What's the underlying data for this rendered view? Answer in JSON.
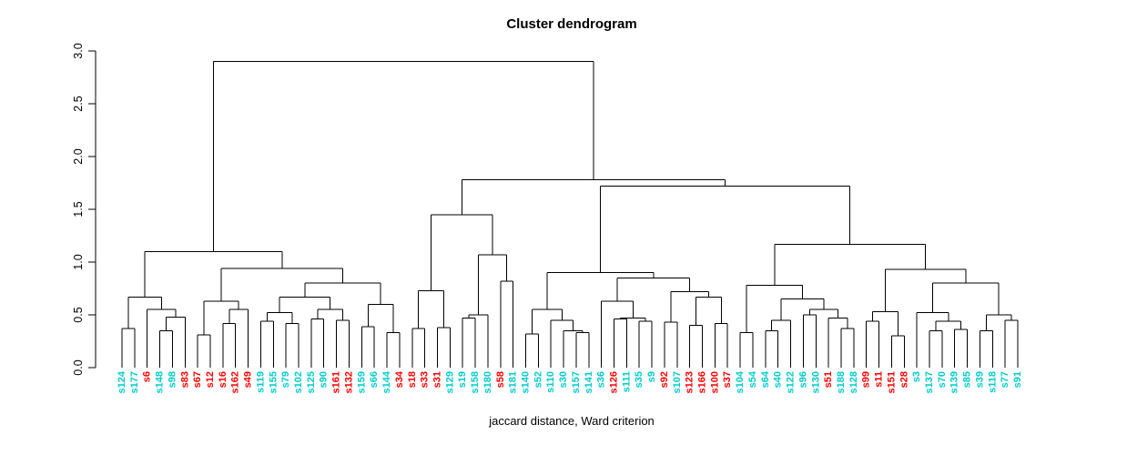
{
  "chart_data": {
    "type": "dendrogram",
    "title": "Cluster dendrogram",
    "xlabel": "jaccard distance, Ward criterion",
    "ylim": [
      0,
      3
    ],
    "yticks": [
      0,
      0.5,
      1,
      1.5,
      2,
      2.5,
      3
    ],
    "ytick_labels": [
      "0.0",
      "0.5",
      "1.0",
      "1.5",
      "2.0",
      "2.5",
      "3.0"
    ],
    "grid": false,
    "line_color": "#000000",
    "label_colors": {
      "cyan": "#00CDCD",
      "red": "#FF0000"
    },
    "leaves": [
      {
        "label": "s124",
        "color": "cyan"
      },
      {
        "label": "s177",
        "color": "cyan"
      },
      {
        "label": "s6",
        "color": "red"
      },
      {
        "label": "s148",
        "color": "cyan"
      },
      {
        "label": "s98",
        "color": "cyan"
      },
      {
        "label": "s83",
        "color": "red"
      },
      {
        "label": "s67",
        "color": "red"
      },
      {
        "label": "s12",
        "color": "red"
      },
      {
        "label": "s16",
        "color": "red"
      },
      {
        "label": "s162",
        "color": "red"
      },
      {
        "label": "s49",
        "color": "red"
      },
      {
        "label": "s119",
        "color": "cyan"
      },
      {
        "label": "s155",
        "color": "cyan"
      },
      {
        "label": "s79",
        "color": "cyan"
      },
      {
        "label": "s102",
        "color": "cyan"
      },
      {
        "label": "s125",
        "color": "cyan"
      },
      {
        "label": "s90",
        "color": "cyan"
      },
      {
        "label": "s161",
        "color": "red"
      },
      {
        "label": "s132",
        "color": "red"
      },
      {
        "label": "s159",
        "color": "cyan"
      },
      {
        "label": "s66",
        "color": "cyan"
      },
      {
        "label": "s144",
        "color": "cyan"
      },
      {
        "label": "s34",
        "color": "red"
      },
      {
        "label": "s18",
        "color": "red"
      },
      {
        "label": "s33",
        "color": "red"
      },
      {
        "label": "s31",
        "color": "red"
      },
      {
        "label": "s129",
        "color": "cyan"
      },
      {
        "label": "s19",
        "color": "cyan"
      },
      {
        "label": "s158",
        "color": "cyan"
      },
      {
        "label": "s180",
        "color": "cyan"
      },
      {
        "label": "s58",
        "color": "red"
      },
      {
        "label": "s181",
        "color": "cyan"
      },
      {
        "label": "s140",
        "color": "cyan"
      },
      {
        "label": "s52",
        "color": "cyan"
      },
      {
        "label": "s110",
        "color": "cyan"
      },
      {
        "label": "s30",
        "color": "cyan"
      },
      {
        "label": "s157",
        "color": "cyan"
      },
      {
        "label": "s141",
        "color": "cyan"
      },
      {
        "label": "s36",
        "color": "cyan"
      },
      {
        "label": "s126",
        "color": "red"
      },
      {
        "label": "s111",
        "color": "cyan"
      },
      {
        "label": "s35",
        "color": "cyan"
      },
      {
        "label": "s9",
        "color": "cyan"
      },
      {
        "label": "s92",
        "color": "red"
      },
      {
        "label": "s107",
        "color": "cyan"
      },
      {
        "label": "s123",
        "color": "red"
      },
      {
        "label": "s166",
        "color": "red"
      },
      {
        "label": "s100",
        "color": "red"
      },
      {
        "label": "s37",
        "color": "red"
      },
      {
        "label": "s104",
        "color": "cyan"
      },
      {
        "label": "s54",
        "color": "cyan"
      },
      {
        "label": "s64",
        "color": "cyan"
      },
      {
        "label": "s40",
        "color": "cyan"
      },
      {
        "label": "s122",
        "color": "cyan"
      },
      {
        "label": "s96",
        "color": "cyan"
      },
      {
        "label": "s130",
        "color": "cyan"
      },
      {
        "label": "s51",
        "color": "red"
      },
      {
        "label": "s188",
        "color": "cyan"
      },
      {
        "label": "s128",
        "color": "cyan"
      },
      {
        "label": "s99",
        "color": "red"
      },
      {
        "label": "s11",
        "color": "red"
      },
      {
        "label": "s151",
        "color": "red"
      },
      {
        "label": "s28",
        "color": "red"
      },
      {
        "label": "s3",
        "color": "cyan"
      },
      {
        "label": "s137",
        "color": "cyan"
      },
      {
        "label": "s70",
        "color": "cyan"
      },
      {
        "label": "s139",
        "color": "cyan"
      },
      {
        "label": "s85",
        "color": "cyan"
      },
      {
        "label": "s39",
        "color": "cyan"
      },
      {
        "label": "s118",
        "color": "cyan"
      },
      {
        "label": "s77",
        "color": "cyan"
      },
      {
        "label": "s91",
        "color": "cyan"
      }
    ],
    "tree": [
      2.9,
      [
        1.1,
        [
          0.67,
          [
            0.37,
            "s124",
            "s177"
          ],
          [
            0.55,
            "s6",
            [
              0.48,
              [
                0.35,
                "s148",
                "s98"
              ],
              "s83"
            ]
          ]
        ],
        [
          0.94,
          [
            0.63,
            [
              0.31,
              "s67",
              "s12"
            ],
            [
              0.55,
              [
                0.42,
                "s16",
                "s162"
              ],
              "s49"
            ]
          ],
          [
            0.8,
            [
              0.67,
              [
                0.52,
                [
                  0.44,
                  "s119",
                  "s155"
                ],
                [
                  0.42,
                  "s79",
                  "s102"
                ]
              ],
              [
                0.55,
                [
                  0.46,
                  "s125",
                  "s90"
                ],
                [
                  0.45,
                  "s161",
                  "s132"
                ]
              ]
            ],
            [
              0.6,
              [
                0.39,
                "s159",
                "s66"
              ],
              [
                0.33,
                "s144",
                "s34"
              ]
            ]
          ]
        ]
      ],
      [
        1.78,
        [
          1.45,
          [
            0.73,
            [
              0.37,
              "s18",
              "s33"
            ],
            [
              0.38,
              "s31",
              "s129"
            ]
          ],
          [
            1.07,
            [
              0.5,
              [
                0.47,
                "s19",
                "s158"
              ],
              "s180"
            ],
            [
              0.82,
              "s58",
              "s181"
            ]
          ]
        ],
        [
          1.72,
          [
            0.9,
            [
              0.55,
              [
                0.32,
                "s140",
                "s52"
              ],
              [
                0.45,
                "s110",
                [
                  0.35,
                  "s30",
                  [
                    0.33,
                    "s157",
                    "s141"
                  ]
                ]
              ]
            ],
            [
              0.85,
              [
                0.63,
                "s36",
                [
                  0.47,
                  [
                    0.46,
                    "s126",
                    "s111"
                  ],
                  [
                    0.44,
                    "s35",
                    "s9"
                  ]
                ]
              ],
              [
                0.72,
                [
                  0.43,
                  "s92",
                  "s107"
                ],
                [
                  0.67,
                  [
                    0.4,
                    "s123",
                    "s166"
                  ],
                  [
                    0.42,
                    "s100",
                    "s37"
                  ]
                ]
              ]
            ]
          ],
          [
            1.17,
            [
              0.78,
              [
                0.33,
                "s104",
                "s54"
              ],
              [
                0.65,
                [
                  0.45,
                  [
                    0.35,
                    "s64",
                    "s40"
                  ],
                  "s122"
                ],
                [
                  0.55,
                  [
                    0.5,
                    "s96",
                    "s130"
                  ],
                  [
                    0.47,
                    "s51",
                    [
                      0.37,
                      "s188",
                      "s128"
                    ]
                  ]
                ]
              ]
            ],
            [
              0.93,
              [
                0.53,
                [
                  0.44,
                  "s99",
                  "s11"
                ],
                [
                  0.3,
                  "s151",
                  "s28"
                ]
              ],
              [
                0.8,
                [
                  0.52,
                  "s3",
                  [
                    0.44,
                    [
                      0.35,
                      "s137",
                      "s70"
                    ],
                    [
                      0.36,
                      "s139",
                      "s85"
                    ]
                  ]
                ],
                [
                  0.5,
                  [
                    0.35,
                    "s39",
                    "s118"
                  ],
                  [
                    0.45,
                    "s77",
                    "s91"
                  ]
                ]
              ]
            ]
          ]
        ]
      ]
    ]
  }
}
